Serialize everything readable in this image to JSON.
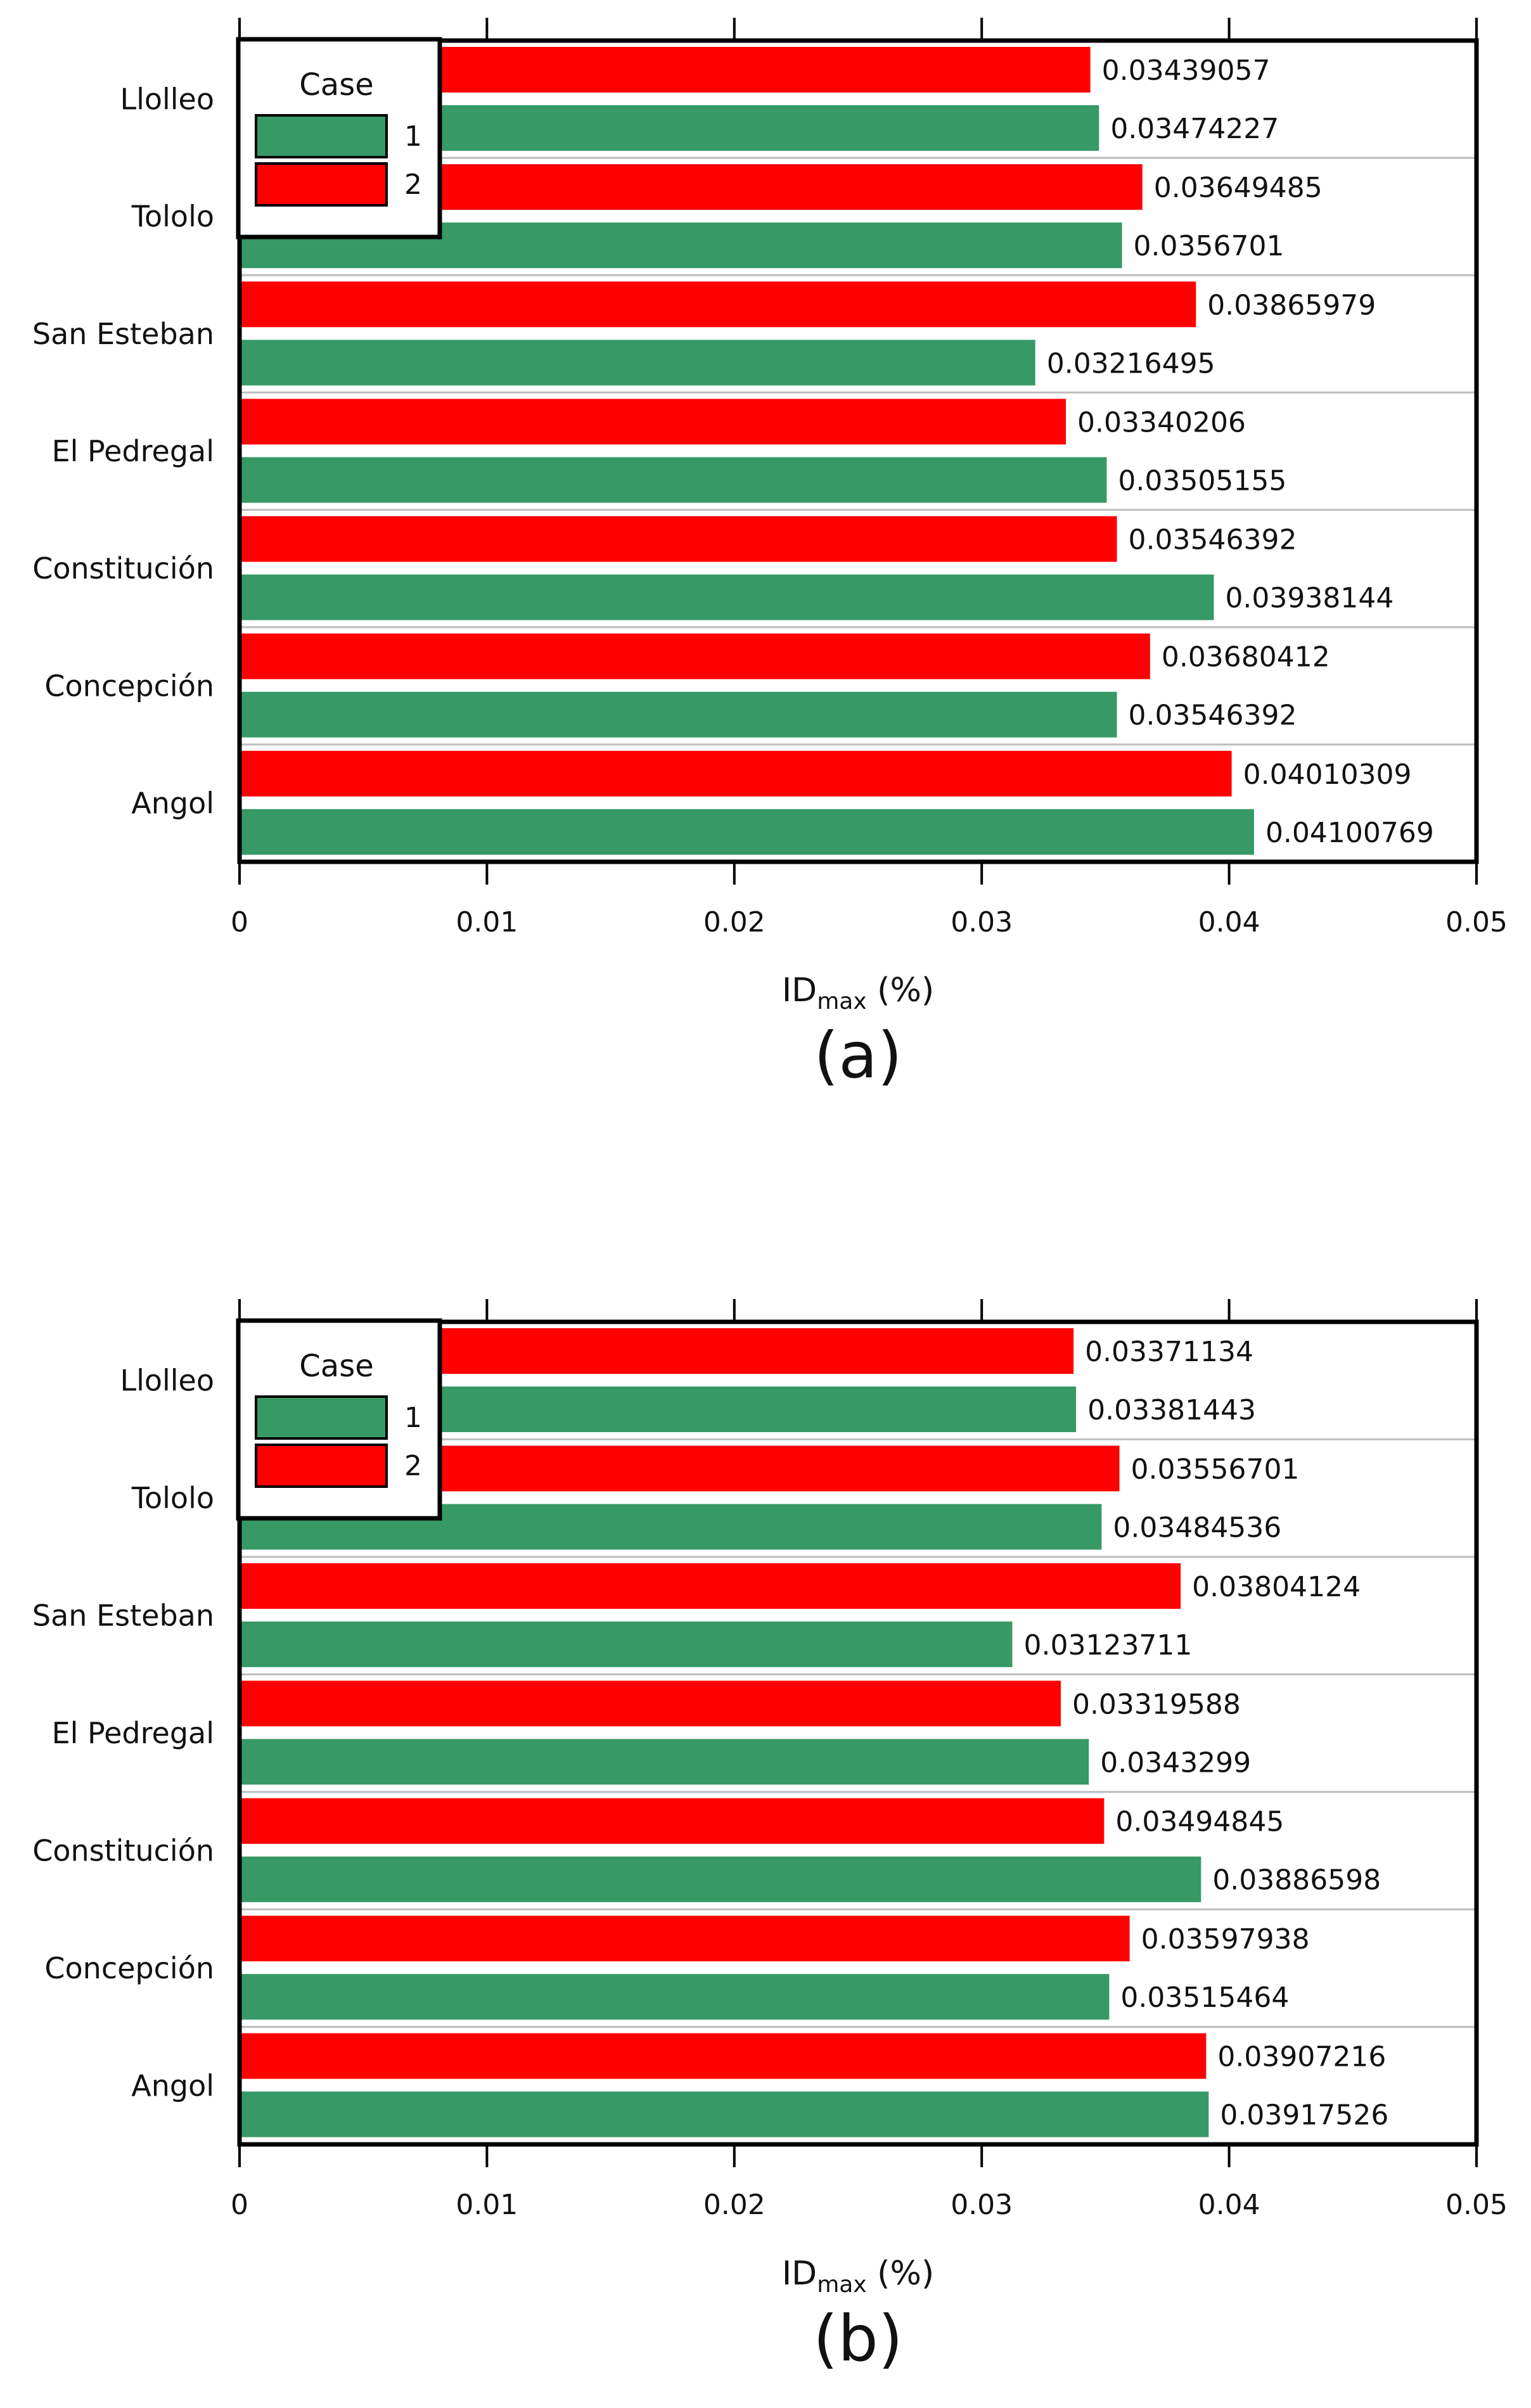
{
  "chart_data": [
    {
      "type": "bar",
      "orientation": "horizontal",
      "panel_label": "(a)",
      "categories": [
        "Llolleo",
        "Tololo",
        "San Esteban",
        "El Pedregal",
        "Constitución",
        "Concepción",
        "Angol"
      ],
      "series": [
        {
          "name": "1",
          "color": "#369966",
          "values": [
            0.03474227,
            0.0356701,
            0.03216495,
            0.03505155,
            0.03938144,
            0.03546392,
            0.04100769
          ],
          "labels": [
            "0.03474227",
            "0.0356701",
            "0.03216495",
            "0.03505155",
            "0.03938144",
            "0.03546392",
            "0.04100769"
          ]
        },
        {
          "name": "2",
          "color": "#ff0000",
          "values": [
            0.03439057,
            0.03649485,
            0.03865979,
            0.03340206,
            0.03546392,
            0.03680412,
            0.04010309
          ],
          "labels": [
            "0.03439057",
            "0.03649485",
            "0.03865979",
            "0.03340206",
            "0.03546392",
            "0.03680412",
            "0.04010309"
          ]
        }
      ],
      "xlabel": {
        "main": "ID",
        "sub": "max",
        "unit": " (%)"
      },
      "xlim": [
        0,
        0.05
      ],
      "xticks": [
        "0",
        "0.01",
        "0.02",
        "0.03",
        "0.04",
        "0.05"
      ],
      "legend": {
        "title": "Case",
        "position": "top-left"
      }
    },
    {
      "type": "bar",
      "orientation": "horizontal",
      "panel_label": "(b)",
      "categories": [
        "Llolleo",
        "Tololo",
        "San Esteban",
        "El Pedregal",
        "Constitución",
        "Concepción",
        "Angol"
      ],
      "series": [
        {
          "name": "1",
          "color": "#369966",
          "values": [
            0.03381443,
            0.03484536,
            0.03123711,
            0.0343299,
            0.03886598,
            0.03515464,
            0.03917526
          ],
          "labels": [
            "0.03381443",
            "0.03484536",
            "0.03123711",
            "0.0343299",
            "0.03886598",
            "0.03515464",
            "0.03917526"
          ]
        },
        {
          "name": "2",
          "color": "#ff0000",
          "values": [
            0.03371134,
            0.03556701,
            0.03804124,
            0.03319588,
            0.03494845,
            0.03597938,
            0.03907216
          ],
          "labels": [
            "0.03371134",
            "0.03556701",
            "0.03804124",
            "0.03319588",
            "0.03494845",
            "0.03597938",
            "0.03907216"
          ]
        }
      ],
      "xlabel": {
        "main": "ID",
        "sub": "max",
        "unit": " (%)"
      },
      "xlim": [
        0,
        0.05
      ],
      "xticks": [
        "0",
        "0.01",
        "0.02",
        "0.03",
        "0.04",
        "0.05"
      ],
      "legend": {
        "title": "Case",
        "position": "top-left"
      }
    }
  ]
}
